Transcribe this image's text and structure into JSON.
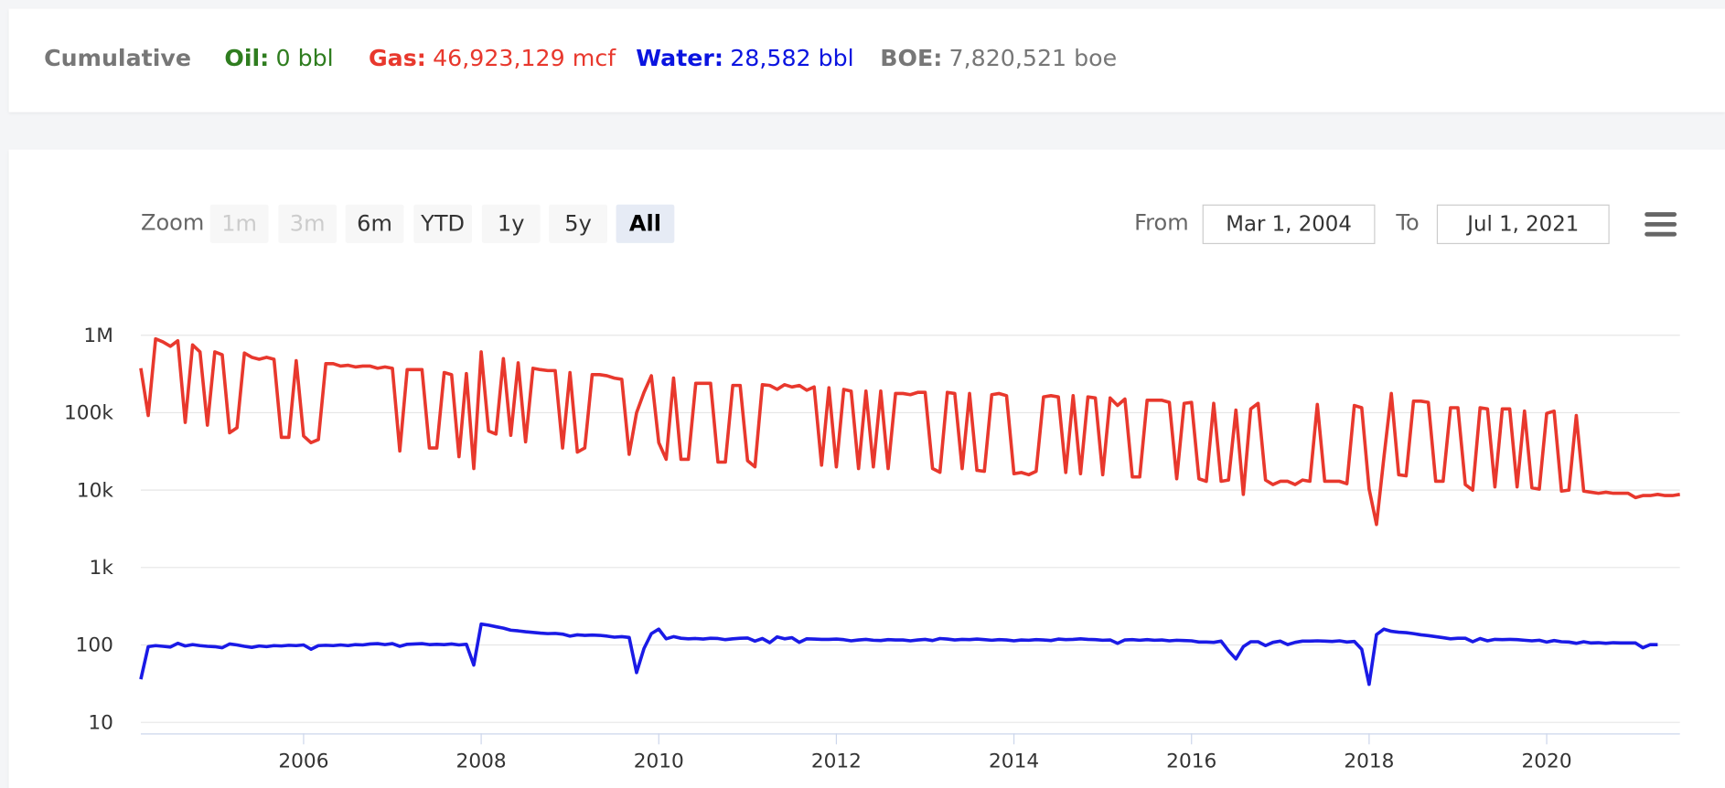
{
  "header": {
    "title": "Cumulative",
    "items": [
      {
        "label": "Oil:",
        "value": "0 bbl",
        "color": "#2f7d1f"
      },
      {
        "label": "Gas:",
        "value": "46,923,129 mcf",
        "color": "#e8382d"
      },
      {
        "label": "Water:",
        "value": "28,582 bbl",
        "color": "#0a14e0"
      },
      {
        "label": "BOE:",
        "value": "7,820,521 boe",
        "color": "#777777"
      }
    ]
  },
  "toolbar": {
    "zoom_label": "Zoom",
    "buttons": [
      {
        "label": "1m",
        "state": "disabled"
      },
      {
        "label": "3m",
        "state": "disabled"
      },
      {
        "label": "6m",
        "state": "normal"
      },
      {
        "label": "YTD",
        "state": "normal"
      },
      {
        "label": "1y",
        "state": "normal"
      },
      {
        "label": "5y",
        "state": "normal"
      },
      {
        "label": "All",
        "state": "active"
      }
    ],
    "from_label": "From",
    "from_value": "Mar 1, 2004",
    "to_label": "To",
    "to_value": "Jul 1, 2021"
  },
  "chart_data": {
    "type": "line",
    "log_scale": true,
    "grid": true,
    "xlim": [
      "2004-03",
      "2021-07"
    ],
    "xticks": [
      2006,
      2008,
      2010,
      2012,
      2014,
      2016,
      2018,
      2020
    ],
    "ylim": [
      7.2,
      7100000
    ],
    "yticks": [
      10,
      100,
      {
        "value": 1000,
        "label": "1k"
      },
      {
        "value": 10000,
        "label": "10k"
      },
      {
        "value": 100000,
        "label": "100k"
      },
      {
        "value": 1000000,
        "label": "1M"
      }
    ],
    "x": [
      "2004-03",
      "2004-04",
      "2004-05",
      "2004-06",
      "2004-07",
      "2004-08",
      "2004-09",
      "2004-10",
      "2004-11",
      "2004-12",
      "2005-01",
      "2005-02",
      "2005-03",
      "2005-04",
      "2005-05",
      "2005-06",
      "2005-07",
      "2005-08",
      "2005-09",
      "2005-10",
      "2005-11",
      "2005-12",
      "2006-01",
      "2006-02",
      "2006-03",
      "2006-04",
      "2006-05",
      "2006-06",
      "2006-07",
      "2006-08",
      "2006-09",
      "2006-10",
      "2006-11",
      "2006-12",
      "2007-01",
      "2007-02",
      "2007-03",
      "2007-04",
      "2007-05",
      "2007-06",
      "2007-07",
      "2007-08",
      "2007-09",
      "2007-10",
      "2007-11",
      "2007-12",
      "2008-01",
      "2008-02",
      "2008-03",
      "2008-04",
      "2008-05",
      "2008-06",
      "2008-07",
      "2008-08",
      "2008-09",
      "2008-10",
      "2008-11",
      "2008-12",
      "2009-01",
      "2009-02",
      "2009-03",
      "2009-04",
      "2009-05",
      "2009-06",
      "2009-07",
      "2009-08",
      "2009-09",
      "2009-10",
      "2009-11",
      "2009-12",
      "2010-01",
      "2010-02",
      "2010-03",
      "2010-04",
      "2010-05",
      "2010-06",
      "2010-07",
      "2010-08",
      "2010-09",
      "2010-10",
      "2010-11",
      "2010-12",
      "2011-01",
      "2011-02",
      "2011-03",
      "2011-04",
      "2011-05",
      "2011-06",
      "2011-07",
      "2011-08",
      "2011-09",
      "2011-10",
      "2011-11",
      "2011-12",
      "2012-01",
      "2012-02",
      "2012-03",
      "2012-04",
      "2012-05",
      "2012-06",
      "2012-07",
      "2012-08",
      "2012-09",
      "2012-10",
      "2012-11",
      "2012-12",
      "2013-01",
      "2013-02",
      "2013-03",
      "2013-04",
      "2013-05",
      "2013-06",
      "2013-07",
      "2013-08",
      "2013-09",
      "2013-10",
      "2013-11",
      "2013-12",
      "2014-01",
      "2014-02",
      "2014-03",
      "2014-04",
      "2014-05",
      "2014-06",
      "2014-07",
      "2014-08",
      "2014-09",
      "2014-10",
      "2014-11",
      "2014-12",
      "2015-01",
      "2015-02",
      "2015-03",
      "2015-04",
      "2015-05",
      "2015-06",
      "2015-07",
      "2015-08",
      "2015-09",
      "2015-10",
      "2015-11",
      "2015-12",
      "2016-01",
      "2016-02",
      "2016-03",
      "2016-04",
      "2016-05",
      "2016-06",
      "2016-07",
      "2016-08",
      "2016-09",
      "2016-10",
      "2016-11",
      "2016-12",
      "2017-01",
      "2017-02",
      "2017-03",
      "2017-04",
      "2017-05",
      "2017-06",
      "2017-07",
      "2017-08",
      "2017-09",
      "2017-10",
      "2017-11",
      "2017-12",
      "2018-01",
      "2018-02",
      "2018-03",
      "2018-04",
      "2018-05",
      "2018-06",
      "2018-07",
      "2018-08",
      "2018-09",
      "2018-10",
      "2018-11",
      "2018-12",
      "2019-01",
      "2019-02",
      "2019-03",
      "2019-04",
      "2019-05",
      "2019-06",
      "2019-07",
      "2019-08",
      "2019-09",
      "2019-10",
      "2019-11",
      "2019-12",
      "2020-01",
      "2020-02",
      "2020-03",
      "2020-04",
      "2020-05",
      "2020-06",
      "2020-07",
      "2020-08",
      "2020-09",
      "2020-10",
      "2020-11",
      "2020-12",
      "2021-01",
      "2021-02",
      "2021-03",
      "2021-04",
      "2021-05",
      "2021-06",
      "2021-07"
    ],
    "series": [
      {
        "color": "#e8382d",
        "values": [
          376000,
          92000,
          900000,
          820000,
          720000,
          850000,
          75000,
          750000,
          610000,
          69000,
          610000,
          560000,
          55000,
          64000,
          590000,
          520000,
          490000,
          520000,
          490000,
          48000,
          48000,
          470000,
          50000,
          41000,
          45000,
          430000,
          430000,
          400000,
          410000,
          390000,
          400000,
          400000,
          375000,
          390000,
          375000,
          32000,
          360000,
          360000,
          360000,
          35000,
          35000,
          330000,
          310000,
          27000,
          320000,
          19000,
          610000,
          58000,
          53000,
          500000,
          51000,
          440000,
          42000,
          375000,
          360000,
          350000,
          350000,
          35000,
          330000,
          31000,
          35000,
          310000,
          310000,
          300000,
          280000,
          270000,
          29000,
          100000,
          183000,
          300000,
          41000,
          25000,
          280000,
          25000,
          25000,
          240000,
          240000,
          240000,
          23000,
          23000,
          225000,
          225000,
          24000,
          20000,
          230000,
          225000,
          200000,
          230000,
          215000,
          225000,
          195000,
          215000,
          21000,
          210000,
          20000,
          200000,
          190000,
          19000,
          190000,
          20000,
          190000,
          19000,
          177000,
          177000,
          171000,
          183000,
          183000,
          19000,
          17000,
          183000,
          177000,
          19000,
          177000,
          18000,
          17500,
          171000,
          177000,
          166000,
          16300,
          16900,
          15800,
          17500,
          160000,
          166000,
          160000,
          16900,
          166000,
          16300,
          160000,
          155000,
          15800,
          155000,
          124000,
          150000,
          14800,
          14800,
          145000,
          145000,
          145000,
          136000,
          14000,
          132000,
          136000,
          14000,
          13000,
          132000,
          13000,
          13500,
          108000,
          8800,
          112000,
          132000,
          13500,
          11800,
          13000,
          13000,
          11800,
          13500,
          13000,
          128000,
          13000,
          13000,
          13000,
          12100,
          124000,
          116000,
          10300,
          3600,
          26500,
          177000,
          15800,
          15300,
          141000,
          141000,
          136000,
          13000,
          13000,
          116000,
          116000,
          11800,
          10000,
          116000,
          112000,
          11000,
          112000,
          112000,
          11000,
          105000,
          10700,
          10300,
          98000,
          105000,
          9700,
          10000,
          92000,
          9700,
          9400,
          9100,
          9400,
          9100,
          9100,
          9100,
          8000,
          8500,
          8500,
          8800,
          8500,
          8500,
          8800
        ]
      },
      {
        "color": "#1a1ae6",
        "values": [
          36,
          95,
          98,
          96,
          94,
          105,
          97,
          101,
          98,
          96,
          95,
          92,
          103,
          100,
          96,
          93,
          97,
          95,
          98,
          97,
          99,
          98,
          100,
          88,
          98,
          99,
          98,
          100,
          98,
          101,
          100,
          103,
          104,
          101,
          104,
          96,
          102,
          103,
          104,
          101,
          102,
          101,
          103,
          100,
          102,
          55,
          186,
          180,
          172,
          165,
          155,
          152,
          148,
          145,
          142,
          140,
          141,
          138,
          130,
          135,
          133,
          134,
          133,
          130,
          126,
          128,
          125,
          44,
          90,
          140,
          160,
          120,
          128,
          122,
          120,
          121,
          119,
          122,
          121,
          117,
          120,
          122,
          123,
          112,
          121,
          107,
          127,
          120,
          124,
          108,
          120,
          119,
          118,
          118,
          119,
          117,
          113,
          116,
          118,
          115,
          114,
          117,
          116,
          116,
          113,
          116,
          118,
          114,
          121,
          119,
          116,
          118,
          117,
          119,
          117,
          115,
          117,
          116,
          113,
          116,
          115,
          117,
          116,
          114,
          119,
          117,
          118,
          120,
          118,
          117,
          115,
          116,
          105,
          116,
          117,
          115,
          117,
          115,
          116,
          113,
          115,
          114,
          113,
          109,
          109,
          108,
          112,
          84,
          66,
          95,
          110,
          110,
          98,
          108,
          112,
          101,
          108,
          112,
          112,
          113,
          112,
          111,
          113,
          109,
          111,
          88,
          31,
          136,
          160,
          150,
          146,
          144,
          140,
          135,
          132,
          128,
          124,
          120,
          122,
          122,
          110,
          121,
          113,
          118,
          117,
          118,
          117,
          115,
          113,
          115,
          109,
          114,
          110,
          109,
          105,
          110,
          106,
          107,
          105,
          107,
          106,
          106,
          106,
          92,
          101,
          101,
          null,
          null,
          null
        ]
      }
    ]
  }
}
